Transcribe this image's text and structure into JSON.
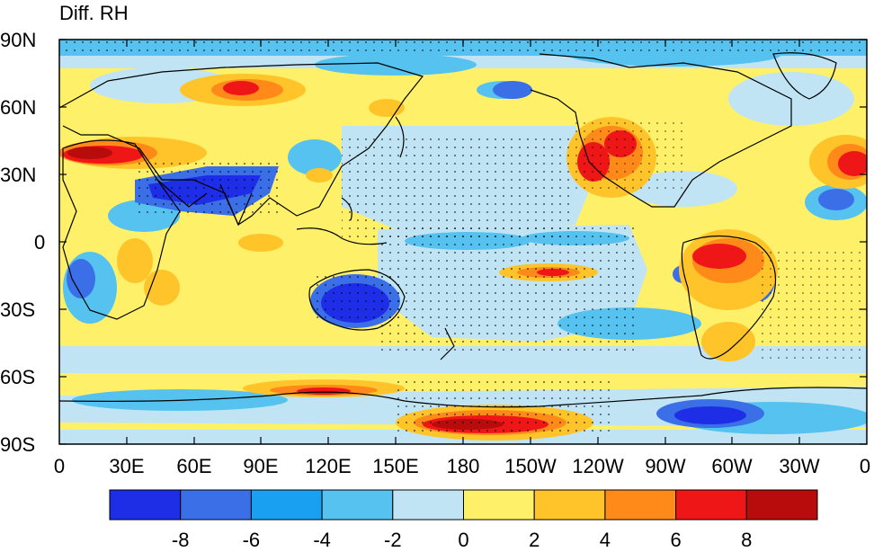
{
  "title": "Diff. RH",
  "lat_labels": [
    "90N",
    "60N",
    "30N",
    "0",
    "30S",
    "60S",
    "90S"
  ],
  "lon_labels": [
    "0",
    "30E",
    "60E",
    "90E",
    "120E",
    "150E",
    "180",
    "150W",
    "120W",
    "90W",
    "60W",
    "30W",
    "0"
  ],
  "colorbar": {
    "colors": [
      "#1e2ee6",
      "#3a6fe8",
      "#1aa0f0",
      "#55c2f0",
      "#c0e4f4",
      "#fff06a",
      "#ffc42a",
      "#ff8a1a",
      "#ee1616",
      "#b80c0c"
    ],
    "labels": [
      "-8",
      "-6",
      "-4",
      "-2",
      "0",
      "2",
      "4",
      "6",
      "8"
    ]
  }
}
